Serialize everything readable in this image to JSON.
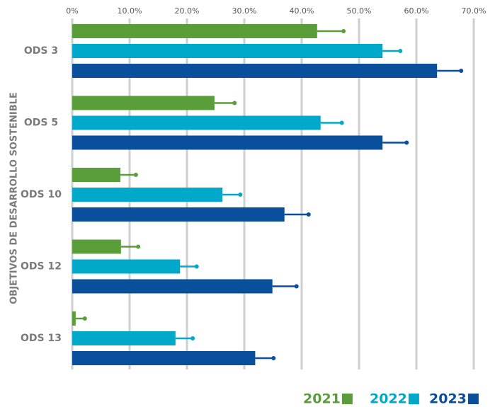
{
  "chart_data": {
    "type": "bar",
    "orientation": "horizontal",
    "y_label": "OBJETIVOS DE DESARROLLO SOSTENIBLE",
    "categories": [
      "ODS 3",
      "ODS 5",
      "ODS 10",
      "ODS 12",
      "ODS 13"
    ],
    "series": [
      {
        "name": "2021",
        "color": "#5a9e3a",
        "values": [
          42.7,
          24.8,
          8.4,
          8.5,
          0.6
        ],
        "errors": [
          4.6,
          3.5,
          2.7,
          3.0,
          1.6
        ]
      },
      {
        "name": "2022",
        "color": "#00a9c9",
        "values": [
          54.1,
          43.3,
          26.2,
          18.8,
          18.0
        ],
        "errors": [
          3.1,
          3.7,
          3.1,
          2.9,
          3.0
        ]
      },
      {
        "name": "2023",
        "color": "#0a4f9b",
        "values": [
          63.6,
          54.1,
          37.0,
          34.9,
          31.9
        ],
        "errors": [
          4.2,
          4.2,
          4.2,
          4.2,
          3.2
        ]
      }
    ],
    "xlim": [
      0,
      70
    ],
    "xticks": [
      {
        "value": 0,
        "label": "0%"
      },
      {
        "value": 10,
        "label": "10.0%"
      },
      {
        "value": 20,
        "label": "20.0%"
      },
      {
        "value": 30,
        "label": "30.0%"
      },
      {
        "value": 40,
        "label": "40.0%"
      },
      {
        "value": 50,
        "label": "50.0%"
      },
      {
        "value": 60,
        "label": "60.0%"
      },
      {
        "value": 70,
        "label": "70.0%"
      }
    ],
    "grid": true,
    "legend": "bottom-right"
  }
}
